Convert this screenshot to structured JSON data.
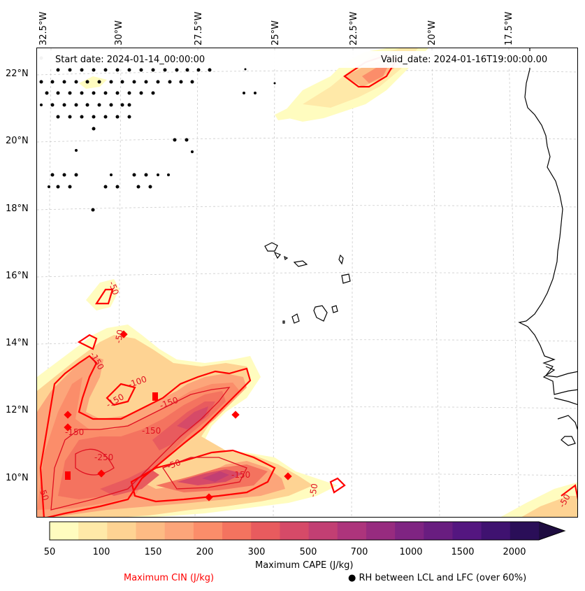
{
  "map": {
    "start_date": "Start date: 2024-01-14_00:00:00",
    "valid_date": "Valid_date: 2024-01-16T19:00:00.00",
    "lon_labels": [
      "32.5°W",
      "30°W",
      "27.5°W",
      "25°W",
      "22.5°W",
      "20°W",
      "17.5°W"
    ],
    "lat_labels": [
      "22°N",
      "20°N",
      "18°N",
      "16°N",
      "14°N",
      "12°N",
      "10°N"
    ],
    "cin_contour_labels": [
      "-50",
      "-50",
      "-150",
      "-100",
      "-150",
      "-150",
      "-250",
      "-150",
      "-50",
      "-150",
      "-50",
      "-50",
      "-150",
      "-50"
    ]
  },
  "colorbar": {
    "ticks": [
      "50",
      "100",
      "150",
      "200",
      "300",
      "500",
      "700",
      "1000",
      "1500",
      "2000"
    ],
    "label": "Maximum CAPE (J/kg)",
    "colors": [
      "#fffcbf",
      "#ffe9a8",
      "#fed393",
      "#fdbb84",
      "#fca57a",
      "#fb8d6a",
      "#f4735f",
      "#e85b5e",
      "#d64a68",
      "#c23f73",
      "#ad347c",
      "#972b7f",
      "#7f2482",
      "#691d80",
      "#541680",
      "#3f1270",
      "#2a0e58",
      "#1e0c40"
    ]
  },
  "legend": {
    "cin_label": "Maximum CIN (J/kg)",
    "cin_color": "#ff0000",
    "rh_symbol": "●",
    "rh_label": "RH between LCL and LFC (over 60%)"
  }
}
